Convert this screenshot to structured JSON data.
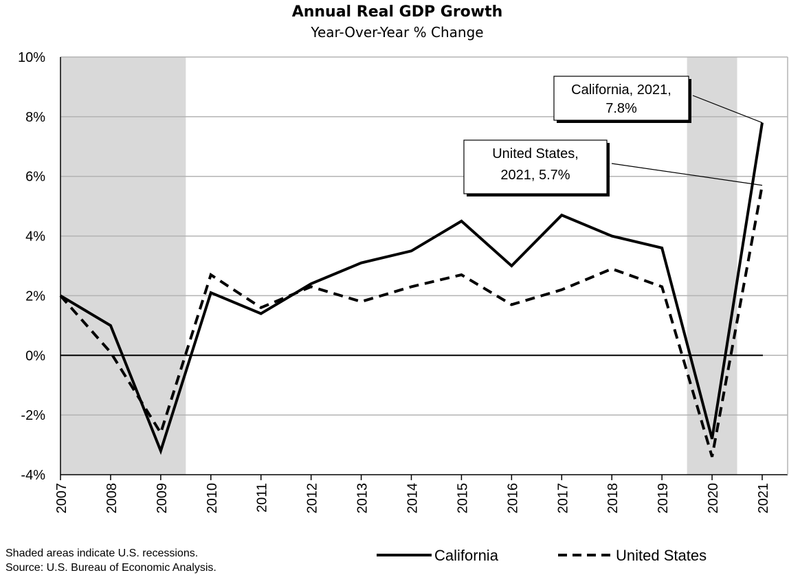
{
  "chart_data": {
    "type": "line",
    "title": "Annual Real GDP Growth",
    "subtitle": "Year-Over-Year % Change",
    "x": [
      "2007",
      "2008",
      "2009",
      "2010",
      "2011",
      "2012",
      "2013",
      "2014",
      "2015",
      "2016",
      "2017",
      "2018",
      "2019",
      "2020",
      "2021"
    ],
    "series": [
      {
        "name": "California",
        "style": "solid",
        "color": "#000000",
        "values": [
          2.0,
          1.0,
          -3.2,
          2.1,
          1.4,
          2.4,
          3.1,
          3.5,
          4.5,
          3.0,
          4.7,
          4.0,
          3.6,
          -2.8,
          7.8
        ]
      },
      {
        "name": "United States",
        "style": "dashed",
        "color": "#000000",
        "values": [
          2.0,
          0.1,
          -2.6,
          2.7,
          1.6,
          2.3,
          1.8,
          2.3,
          2.7,
          1.7,
          2.2,
          2.9,
          2.3,
          -3.4,
          5.7
        ]
      }
    ],
    "ylim": [
      -4,
      10
    ],
    "yticks": [
      {
        "value": -4,
        "label": "-4%"
      },
      {
        "value": -2,
        "label": "-2%"
      },
      {
        "value": 0,
        "label": "0%"
      },
      {
        "value": 2,
        "label": "2%"
      },
      {
        "value": 4,
        "label": "4%"
      },
      {
        "value": 6,
        "label": "6%"
      },
      {
        "value": 8,
        "label": "8%"
      },
      {
        "value": 10,
        "label": "10%"
      }
    ],
    "grid": true,
    "recession_shading": [
      {
        "start": 2007,
        "end": 2009.5
      },
      {
        "start": 2019.5,
        "end": 2020.5
      }
    ],
    "shading_color": "#d9d9d9",
    "annotations": [
      {
        "line1": "California, 2021,",
        "line2": "7.8%",
        "x": "2021",
        "y": 7.8
      },
      {
        "line1": "United States,",
        "line2": "2021, 5.7%",
        "x": "2021",
        "y": 5.7
      }
    ],
    "legend_position": "bottom-right",
    "notes": [
      "Shaded areas indicate U.S. recessions.",
      "Source: U.S. Bureau of Economic Analysis."
    ]
  }
}
